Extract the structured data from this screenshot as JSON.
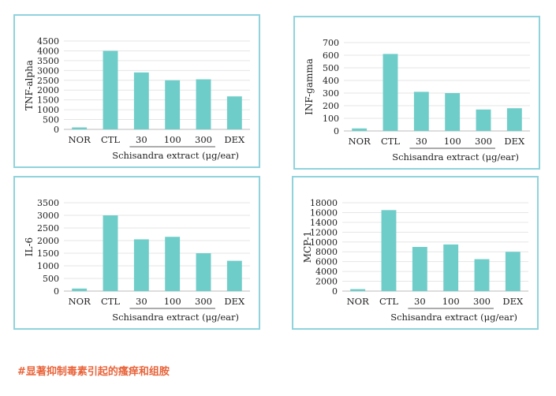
{
  "colors": {
    "bar": "#6fcdc9",
    "border": "#8fd3dd",
    "grid": "#e6e6e6",
    "axis": "#222222",
    "caption": "#e8643a"
  },
  "caption": "#显著抑制毒素引起的瘙痒和组胺",
  "chart_data": [
    {
      "type": "bar",
      "categories": [
        "NOR",
        "CTL",
        "30",
        "100",
        "300",
        "DEX"
      ],
      "ylabel": "TNF-alpha",
      "xlabel": "Schisandra extract (μg/ear)",
      "ylim": [
        0,
        4500
      ],
      "yticks": [
        0,
        500,
        1000,
        1500,
        2000,
        2500,
        3000,
        3500,
        4000,
        4500
      ],
      "values": [
        100,
        4000,
        2900,
        2500,
        2550,
        1680
      ],
      "grid": true
    },
    {
      "type": "bar",
      "categories": [
        "NOR",
        "CTL",
        "30",
        "100",
        "300",
        "DEX"
      ],
      "ylabel": "INF-gamma",
      "xlabel": "Schisandra extract (μg/ear)",
      "ylim": [
        0,
        700
      ],
      "yticks": [
        0,
        100,
        200,
        300,
        400,
        500,
        600,
        700
      ],
      "values": [
        20,
        610,
        310,
        300,
        170,
        180
      ],
      "grid": true
    },
    {
      "type": "bar",
      "categories": [
        "NOR",
        "CTL",
        "30",
        "100",
        "300",
        "DEX"
      ],
      "ylabel": "IL-6",
      "xlabel": "Schisandra extract (μg/ear)",
      "ylim": [
        0,
        3500
      ],
      "yticks": [
        0,
        500,
        1000,
        1500,
        2000,
        2500,
        3000,
        3500
      ],
      "values": [
        100,
        3000,
        2050,
        2150,
        1500,
        1200
      ],
      "grid": true
    },
    {
      "type": "bar",
      "categories": [
        "NOR",
        "CTL",
        "30",
        "100",
        "300",
        "DEX"
      ],
      "ylabel": "MCP-1",
      "xlabel": "Schisandra extract (μg/ear)",
      "ylim": [
        0,
        18000
      ],
      "yticks": [
        0,
        2000,
        4000,
        6000,
        8000,
        10000,
        12000,
        14000,
        16000,
        18000
      ],
      "values": [
        400,
        16500,
        9000,
        9500,
        6500,
        8000
      ],
      "grid": true
    }
  ]
}
